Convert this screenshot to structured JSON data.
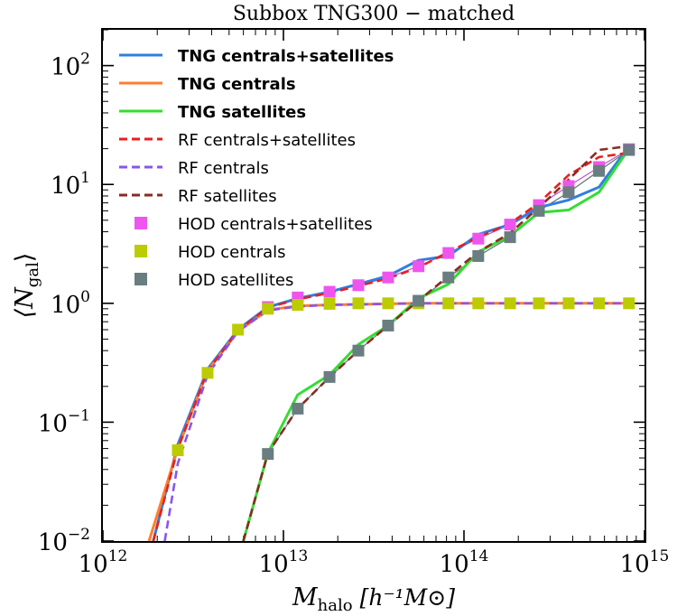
{
  "chart_data": {
    "type": "line",
    "title": "Subbox TNG300 − matched",
    "xlabel": {
      "main": "M",
      "sub": "halo",
      "units": "[h⁻¹M⊙]"
    },
    "ylabel": {
      "main": "⟨N",
      "sub": "gal",
      "close": "⟩"
    },
    "x_scale": "log",
    "y_scale": "log",
    "xlim": [
      1000000000000.0,
      1000000000000000.0
    ],
    "ylim": [
      0.01,
      200
    ],
    "x_ticks": [
      {
        "value": 1000000000000.0,
        "base": "10",
        "exp": "12"
      },
      {
        "value": 10000000000000.0,
        "base": "10",
        "exp": "13"
      },
      {
        "value": 100000000000000.0,
        "base": "10",
        "exp": "14"
      },
      {
        "value": 1000000000000000.0,
        "base": "10",
        "exp": "15"
      }
    ],
    "y_ticks": [
      {
        "value": 0.01,
        "base": "10",
        "exp": "−2"
      },
      {
        "value": 0.1,
        "base": "10",
        "exp": "−1"
      },
      {
        "value": 1,
        "base": "10",
        "exp": "0"
      },
      {
        "value": 10,
        "base": "10",
        "exp": "1"
      },
      {
        "value": 100,
        "base": "10",
        "exp": "2"
      }
    ],
    "legend_position": "upper-left",
    "series": [
      {
        "name": "TNG centrals+satellites",
        "kind": "line",
        "style": "solid",
        "bold": true,
        "color": "#2f7fe0",
        "x": [
          1900000000000.0,
          2600000000000.0,
          3800000000000.0,
          5600000000000.0,
          8200000000000.0,
          12000000000000.0,
          18000000000000.0,
          26000000000000.0,
          38000000000000.0,
          56000000000000.0,
          82000000000000.0,
          120000000000000.0,
          180000000000000.0,
          260000000000000.0,
          380000000000000.0,
          560000000000000.0,
          820000000000000.0
        ],
        "y": [
          0.01,
          0.065,
          0.28,
          0.6,
          0.93,
          1.1,
          1.25,
          1.45,
          1.7,
          2.3,
          2.5,
          3.8,
          4.6,
          6.4,
          7.4,
          9.5,
          21.0
        ]
      },
      {
        "name": "TNG centrals",
        "kind": "line",
        "style": "solid",
        "bold": true,
        "color": "#ff7f2a",
        "x": [
          1800000000000.0,
          2600000000000.0,
          3800000000000.0,
          5600000000000.0,
          8200000000000.0,
          12000000000000.0,
          18000000000000.0,
          26000000000000.0,
          38000000000000.0,
          56000000000000.0,
          82000000000000.0,
          120000000000000.0,
          180000000000000.0,
          260000000000000.0,
          380000000000000.0,
          560000000000000.0,
          820000000000000.0
        ],
        "y": [
          0.01,
          0.06,
          0.27,
          0.58,
          0.88,
          0.95,
          0.97,
          0.98,
          0.99,
          1.0,
          1.0,
          1.0,
          1.0,
          1.0,
          1.0,
          1.0,
          1.0
        ]
      },
      {
        "name": "TNG satellites",
        "kind": "line",
        "style": "solid",
        "bold": true,
        "color": "#33dd33",
        "x": [
          6000000000000.0,
          8200000000000.0,
          12000000000000.0,
          18000000000000.0,
          26000000000000.0,
          38000000000000.0,
          56000000000000.0,
          82000000000000.0,
          120000000000000.0,
          180000000000000.0,
          260000000000000.0,
          380000000000000.0,
          560000000000000.0,
          820000000000000.0
        ],
        "y": [
          0.01,
          0.055,
          0.17,
          0.25,
          0.45,
          0.65,
          1.1,
          1.45,
          2.7,
          3.7,
          5.8,
          6.1,
          8.6,
          20.0
        ]
      },
      {
        "name": "RF centrals+satellites",
        "kind": "line",
        "style": "dashed",
        "bold": false,
        "color": "#e62020",
        "x": [
          1900000000000.0,
          2600000000000.0,
          3800000000000.0,
          5600000000000.0,
          8200000000000.0,
          12000000000000.0,
          18000000000000.0,
          26000000000000.0,
          38000000000000.0,
          56000000000000.0,
          82000000000000.0,
          120000000000000.0,
          180000000000000.0,
          260000000000000.0,
          380000000000000.0,
          560000000000000.0,
          820000000000000.0
        ],
        "y": [
          0.01,
          0.06,
          0.27,
          0.59,
          0.92,
          1.08,
          1.22,
          1.4,
          1.62,
          2.0,
          2.7,
          3.6,
          4.7,
          7.0,
          12.0,
          17.0,
          18.5
        ]
      },
      {
        "name": "RF centrals",
        "kind": "line",
        "style": "dashed",
        "bold": false,
        "color": "#8855ee",
        "x": [
          2200000000000.0,
          2600000000000.0,
          3800000000000.0,
          5600000000000.0,
          8200000000000.0,
          12000000000000.0,
          18000000000000.0,
          26000000000000.0,
          38000000000000.0,
          56000000000000.0,
          82000000000000.0,
          120000000000000.0,
          180000000000000.0,
          260000000000000.0,
          380000000000000.0,
          560000000000000.0,
          820000000000000.0
        ],
        "y": [
          0.01,
          0.045,
          0.25,
          0.58,
          0.87,
          0.94,
          0.97,
          0.98,
          0.99,
          1.0,
          1.0,
          1.0,
          1.0,
          1.0,
          1.0,
          1.0,
          1.0
        ]
      },
      {
        "name": "RF satellites",
        "kind": "line",
        "style": "dashed",
        "bold": false,
        "color": "#8a2b22",
        "x": [
          6000000000000.0,
          8200000000000.0,
          12000000000000.0,
          18000000000000.0,
          26000000000000.0,
          38000000000000.0,
          56000000000000.0,
          82000000000000.0,
          120000000000000.0,
          180000000000000.0,
          260000000000000.0,
          380000000000000.0,
          560000000000000.0,
          820000000000000.0
        ],
        "y": [
          0.01,
          0.055,
          0.13,
          0.24,
          0.4,
          0.65,
          1.05,
          1.7,
          2.7,
          3.9,
          6.4,
          11.0,
          19.5,
          21.0
        ]
      },
      {
        "name": "HOD centrals+satellites",
        "kind": "marker",
        "marker": "square",
        "color": "#ee55ee",
        "x": [
          8200000000000.0,
          12000000000000.0,
          18000000000000.0,
          26000000000000.0,
          38000000000000.0,
          56000000000000.0,
          82000000000000.0,
          120000000000000.0,
          180000000000000.0,
          260000000000000.0,
          380000000000000.0,
          560000000000000.0,
          820000000000000.0
        ],
        "y": [
          0.93,
          1.12,
          1.25,
          1.42,
          1.65,
          2.05,
          2.65,
          3.5,
          4.6,
          6.7,
          9.7,
          14.0,
          19.8
        ]
      },
      {
        "name": "HOD centrals",
        "kind": "marker",
        "marker": "square",
        "color": "#bbcc00",
        "x": [
          2600000000000.0,
          3800000000000.0,
          5600000000000.0,
          8200000000000.0,
          12000000000000.0,
          18000000000000.0,
          26000000000000.0,
          38000000000000.0,
          56000000000000.0,
          82000000000000.0,
          120000000000000.0,
          180000000000000.0,
          260000000000000.0,
          380000000000000.0,
          560000000000000.0,
          820000000000000.0
        ],
        "y": [
          0.058,
          0.26,
          0.6,
          0.9,
          0.97,
          0.99,
          1.0,
          1.0,
          1.0,
          1.0,
          1.0,
          1.0,
          1.0,
          1.0,
          1.0,
          1.0
        ]
      },
      {
        "name": "HOD satellites",
        "kind": "marker",
        "marker": "square",
        "color": "#6a7d80",
        "x": [
          8200000000000.0,
          12000000000000.0,
          18000000000000.0,
          26000000000000.0,
          38000000000000.0,
          56000000000000.0,
          82000000000000.0,
          120000000000000.0,
          180000000000000.0,
          260000000000000.0,
          380000000000000.0,
          560000000000000.0,
          820000000000000.0
        ],
        "y": [
          0.054,
          0.13,
          0.24,
          0.4,
          0.65,
          1.05,
          1.65,
          2.5,
          3.6,
          6.0,
          8.6,
          13.0,
          19.5
        ]
      }
    ],
    "hod_connectors": [
      {
        "of": "HOD centrals+satellites",
        "color": "#c05cc0"
      },
      {
        "of": "HOD satellites",
        "color": "#6a7d80"
      }
    ]
  }
}
